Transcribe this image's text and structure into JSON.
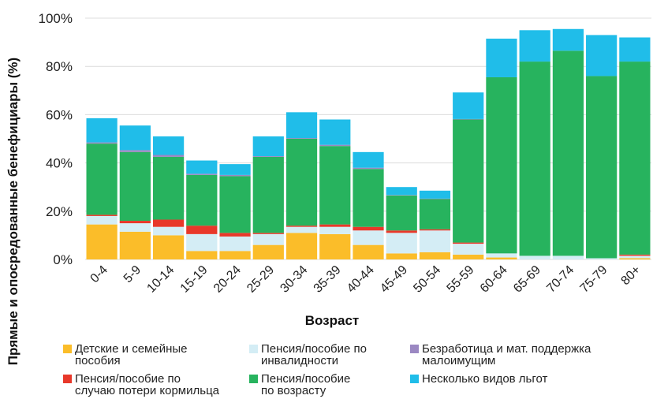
{
  "chart_data": {
    "type": "bar",
    "stacked": true,
    "categories": [
      "0-4",
      "5-9",
      "10-14",
      "15-19",
      "20-24",
      "25-29",
      "30-34",
      "35-39",
      "40-44",
      "45-49",
      "50-54",
      "55-59",
      "60-64",
      "65-69",
      "70-74",
      "75-79",
      "80+"
    ],
    "xlabel": "Возраст",
    "ylabel": "Прямые и опосредованные бенефициары (%)",
    "ylim": [
      0,
      100
    ],
    "yticks": [
      0,
      20,
      40,
      60,
      80,
      100
    ],
    "ytick_labels": [
      "0%",
      "20%",
      "40%",
      "60%",
      "80%",
      "100%"
    ],
    "grid": true,
    "legend_position": "bottom",
    "series": [
      {
        "name": "Детские и семейные пособия",
        "color": "#fbbd29",
        "values": [
          14.5,
          11.5,
          10,
          3.5,
          3.5,
          6,
          11,
          10.5,
          6,
          2.5,
          3,
          2,
          0.8,
          0,
          0,
          0,
          0.5
        ]
      },
      {
        "name": "Пенсия/пособие по инвалидности",
        "color": "#d4edf5",
        "values": [
          3.5,
          3.5,
          3.5,
          7,
          6,
          4.5,
          2.5,
          3,
          6,
          8.5,
          9,
          4.5,
          1.7,
          1.5,
          1.5,
          0.5,
          1
        ]
      },
      {
        "name": "Пенсия/пособие по случаю потери кормильца",
        "color": "#e8382a",
        "values": [
          0.5,
          1,
          3,
          3.5,
          1.5,
          0.5,
          0.5,
          1,
          1.5,
          1,
          0.5,
          0.5,
          0,
          0,
          0,
          0,
          0.5
        ]
      },
      {
        "name": "Пенсия/пособие по возрасту",
        "color": "#27b35e",
        "values": [
          29.5,
          28.5,
          26,
          21,
          23.5,
          31.5,
          36,
          32.5,
          24,
          14.5,
          12.5,
          51,
          73,
          80.5,
          85,
          75.5,
          80
        ]
      },
      {
        "name": "Безработица и мат. поддержка малоимущим",
        "color": "#9b88c2",
        "values": [
          0.5,
          0.8,
          0.8,
          0.5,
          0.5,
          0.3,
          0.3,
          0.5,
          0.5,
          0.2,
          0.2,
          0.2,
          0,
          0,
          0,
          0,
          0
        ]
      },
      {
        "name": "Несколько видов льгот",
        "color": "#20bde9",
        "values": [
          10,
          10.2,
          7.7,
          5.5,
          4.5,
          8.2,
          10.7,
          10.5,
          6.5,
          3.3,
          3.3,
          11,
          16,
          13,
          9,
          17,
          10
        ]
      }
    ]
  },
  "legend": [
    {
      "label": "Детские и семейные\nпособия",
      "color": "#fbbd29"
    },
    {
      "label": "Пенсия/пособие по\nинвалидности",
      "color": "#d4edf5"
    },
    {
      "label": "Безработица и мат. поддержка\nмалоимущим",
      "color": "#9b88c2"
    },
    {
      "label": "Пенсия/пособие по\nслучаю потери кормильца",
      "color": "#e8382a"
    },
    {
      "label": "Пенсия/пособие\nпо возрасту",
      "color": "#27b35e"
    },
    {
      "label": "Несколько видов льгот",
      "color": "#20bde9"
    }
  ]
}
